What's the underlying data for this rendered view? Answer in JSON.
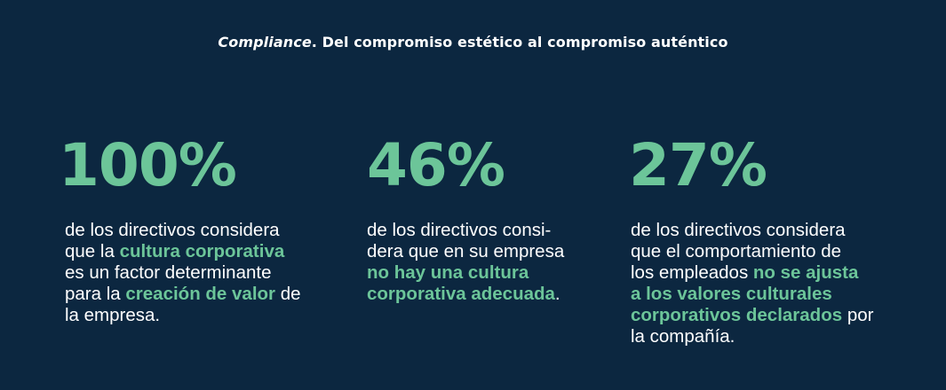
{
  "header": {
    "title_italic": "Compliance",
    "title_rest": ". Del compromiso estético al compromiso auténtico"
  },
  "stats": [
    {
      "value": "100%",
      "lines": [
        {
          "a": "de los directivos considera"
        },
        {
          "a": "que la ",
          "b": "cultura corporativa"
        },
        {
          "a": "es un factor determinante"
        },
        {
          "a": "para la ",
          "b": "creación de valor",
          "c": " de"
        },
        {
          "a": "la empresa."
        }
      ]
    },
    {
      "value": "46%",
      "lines": [
        {
          "a": "de los directivos consi-"
        },
        {
          "a": "dera que en su empresa"
        },
        {
          "b": "no hay una cultura"
        },
        {
          "b": "corporativa adecuada",
          "c": "."
        }
      ]
    },
    {
      "value": "27%",
      "lines": [
        {
          "a": "de los directivos considera"
        },
        {
          "a": "que el comportamiento de"
        },
        {
          "a": "los empleados ",
          "b": "no se ajusta"
        },
        {
          "b": "a los valores culturales"
        },
        {
          "b": "corporativos declarados",
          "c": " por"
        },
        {
          "a": "la compañía."
        }
      ]
    }
  ],
  "colors": {
    "background": "#0c2740",
    "accent": "#6cc599",
    "text": "#ffffff"
  }
}
